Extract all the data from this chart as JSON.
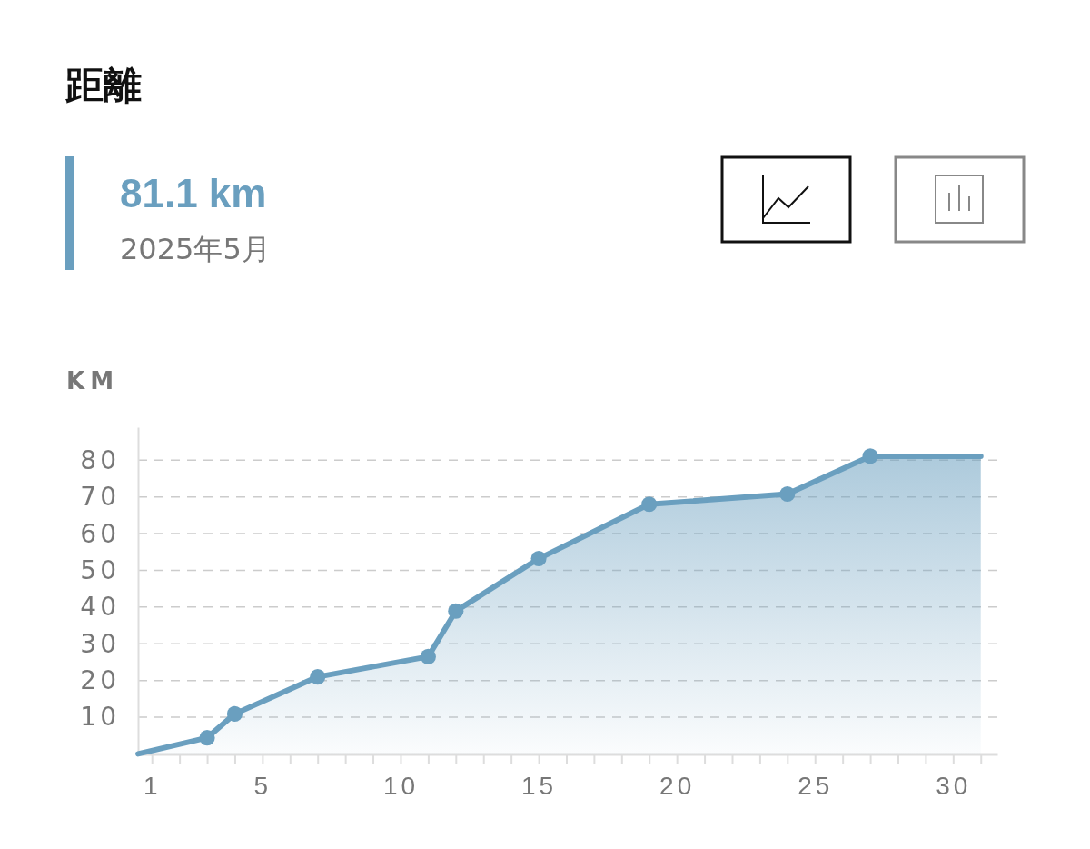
{
  "chart_data": {
    "type": "area",
    "title": "距離",
    "subtitle": "81.1 km",
    "annotations": [
      "2025年5月"
    ],
    "ylabel": "KM",
    "xlim": [
      0.5,
      31.6
    ],
    "ylim": [
      0,
      89
    ],
    "xticks": [
      1,
      {
        "value": 2,
        "label": null
      },
      {
        "value": 3,
        "label": null
      },
      {
        "value": 4,
        "label": null
      },
      5,
      {
        "value": 6,
        "label": null
      },
      {
        "value": 7,
        "label": null
      },
      {
        "value": 8,
        "label": null
      },
      {
        "value": 9,
        "label": null
      },
      10,
      {
        "value": 11,
        "label": null
      },
      {
        "value": 12,
        "label": null
      },
      {
        "value": 13,
        "label": null
      },
      {
        "value": 14,
        "label": null
      },
      15,
      {
        "value": 16,
        "label": null
      },
      {
        "value": 17,
        "label": null
      },
      {
        "value": 18,
        "label": null
      },
      {
        "value": 19,
        "label": null
      },
      20,
      {
        "value": 21,
        "label": null
      },
      {
        "value": 22,
        "label": null
      },
      {
        "value": 23,
        "label": null
      },
      {
        "value": 24,
        "label": null
      },
      25,
      {
        "value": 26,
        "label": null
      },
      {
        "value": 27,
        "label": null
      },
      {
        "value": 28,
        "label": null
      },
      {
        "value": 29,
        "label": null
      },
      30,
      {
        "value": 31,
        "label": null
      }
    ],
    "yticks": [
      10,
      20,
      30,
      40,
      50,
      60,
      70,
      80
    ],
    "grid": "y",
    "series": [
      {
        "color": "#6a9fbf",
        "marker": "none",
        "x": [
          0.5,
          3,
          4,
          7,
          11,
          12,
          15,
          19,
          24,
          27,
          31
        ],
        "values": [
          0,
          4.4,
          10.9,
          21.0,
          26.5,
          38.9,
          53.2,
          68.0,
          70.8,
          81.1,
          81.1
        ]
      },
      {
        "type": "scatter",
        "color": "#6a9fbf",
        "marker": "circle",
        "x": [
          3,
          4,
          7,
          11,
          12,
          15,
          19,
          24,
          27
        ],
        "values": [
          4.4,
          10.9,
          21.0,
          26.5,
          38.9,
          53.2,
          68.0,
          70.8,
          81.1
        ]
      }
    ]
  }
}
